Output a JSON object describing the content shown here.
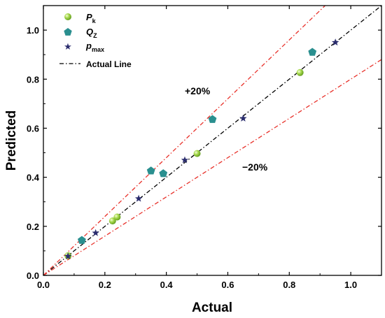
{
  "chart_data": {
    "type": "scatter",
    "xlabel": "Actual",
    "ylabel": "Predicted",
    "xlim": [
      0.0,
      1.1
    ],
    "ylim": [
      0.0,
      1.1
    ],
    "xticks": [
      "0.0",
      "0.2",
      "0.4",
      "0.6",
      "0.8",
      "1.0"
    ],
    "yticks": [
      "0.0",
      "0.2",
      "0.4",
      "0.6",
      "0.8",
      "1.0"
    ],
    "tick_values": [
      0.0,
      0.2,
      0.4,
      0.6,
      0.8,
      1.0
    ],
    "grid": false,
    "legend_position": "top-left",
    "series": [
      {
        "name": "Pk",
        "legend_main": "P",
        "legend_sub": "k",
        "marker": "sphere",
        "color": "#8cc83c",
        "points": [
          [
            0.08,
            0.08
          ],
          [
            0.225,
            0.222
          ],
          [
            0.24,
            0.238
          ],
          [
            0.5,
            0.497
          ],
          [
            0.835,
            0.827
          ]
        ]
      },
      {
        "name": "QZ",
        "legend_main": "Q",
        "legend_sub": "Z",
        "marker": "pentagon",
        "color": "#2a8f8f",
        "points": [
          [
            0.125,
            0.143
          ],
          [
            0.35,
            0.426
          ],
          [
            0.39,
            0.415
          ],
          [
            0.55,
            0.636
          ],
          [
            0.875,
            0.91
          ]
        ]
      },
      {
        "name": "pmax",
        "legend_main": "p",
        "legend_sub": "max",
        "marker": "star",
        "color": "#2b2d6e",
        "points": [
          [
            0.08,
            0.078
          ],
          [
            0.17,
            0.173
          ],
          [
            0.31,
            0.313
          ],
          [
            0.46,
            0.47
          ],
          [
            0.65,
            0.64
          ],
          [
            0.95,
            0.95
          ]
        ]
      }
    ],
    "reference_lines": [
      {
        "name": "Actual Line",
        "slope": 1.0,
        "color": "#000000",
        "style": "dash-dot",
        "in_legend": true
      },
      {
        "name": "+20%",
        "slope": 1.2,
        "color": "#e8312a",
        "style": "dash-dot",
        "in_legend": false
      },
      {
        "name": "-20%",
        "slope": 0.8,
        "color": "#e8312a",
        "style": "dash-dot",
        "in_legend": false
      }
    ],
    "annotations": [
      {
        "text": "+20%",
        "x": 0.52,
        "y": 0.74
      },
      {
        "text": "−20%",
        "x": 0.76,
        "y": 0.44
      }
    ],
    "legend_line_label": "Actual Line"
  }
}
